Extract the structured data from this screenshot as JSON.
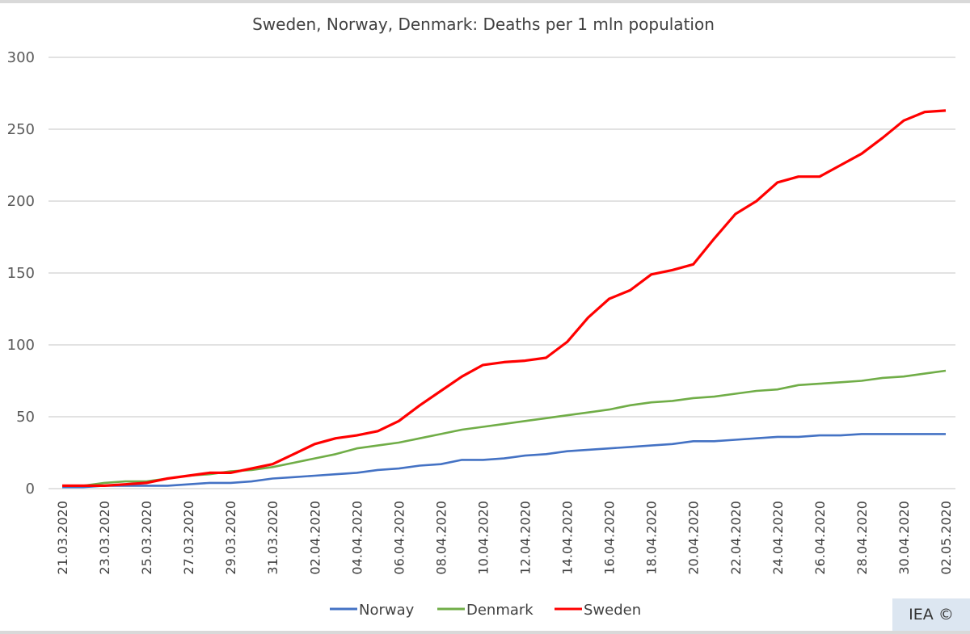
{
  "credit": "IEA ©",
  "chart_data": {
    "type": "line",
    "title": "Sweden, Norway, Denmark: Deaths per 1 mln population",
    "xlabel": "",
    "ylabel": "",
    "ylim": [
      0,
      300
    ],
    "yticks": [
      0,
      50,
      100,
      150,
      200,
      250,
      300
    ],
    "grid": true,
    "legend_position": "bottom",
    "x": [
      "21.03.2020",
      "22.03.2020",
      "23.03.2020",
      "24.03.2020",
      "25.03.2020",
      "26.03.2020",
      "27.03.2020",
      "28.03.2020",
      "29.03.2020",
      "30.03.2020",
      "31.03.2020",
      "01.04.2020",
      "02.04.2020",
      "03.04.2020",
      "04.04.2020",
      "05.04.2020",
      "06.04.2020",
      "07.04.2020",
      "08.04.2020",
      "09.04.2020",
      "10.04.2020",
      "11.04.2020",
      "12.04.2020",
      "13.04.2020",
      "14.04.2020",
      "15.04.2020",
      "16.04.2020",
      "17.04.2020",
      "18.04.2020",
      "19.04.2020",
      "20.04.2020",
      "21.04.2020",
      "22.04.2020",
      "23.04.2020",
      "24.04.2020",
      "25.04.2020",
      "26.04.2020",
      "27.04.2020",
      "28.04.2020",
      "29.04.2020",
      "30.04.2020",
      "01.05.2020",
      "02.05.2020"
    ],
    "xtick_labels": [
      "21.03.2020",
      "23.03.2020",
      "25.03.2020",
      "27.03.2020",
      "29.03.2020",
      "31.03.2020",
      "02.04.2020",
      "04.04.2020",
      "06.04.2020",
      "08.04.2020",
      "10.04.2020",
      "12.04.2020",
      "14.04.2020",
      "16.04.2020",
      "18.04.2020",
      "20.04.2020",
      "22.04.2020",
      "24.04.2020",
      "26.04.2020",
      "28.04.2020",
      "30.04.2020",
      "02.05.2020"
    ],
    "series": [
      {
        "name": "Norway",
        "color": "#4472c4",
        "values": [
          1,
          1,
          2,
          2,
          2,
          2,
          3,
          4,
          4,
          5,
          7,
          8,
          9,
          10,
          11,
          13,
          14,
          16,
          17,
          20,
          20,
          21,
          23,
          24,
          26,
          27,
          28,
          29,
          30,
          31,
          33,
          33,
          34,
          35,
          36,
          36,
          37,
          37,
          38,
          38,
          38,
          38,
          38
        ]
      },
      {
        "name": "Denmark",
        "color": "#70ad47",
        "values": [
          2,
          2,
          4,
          5,
          5,
          7,
          9,
          10,
          12,
          13,
          15,
          18,
          21,
          24,
          28,
          30,
          32,
          35,
          38,
          41,
          43,
          45,
          47,
          49,
          51,
          53,
          55,
          58,
          60,
          61,
          63,
          64,
          66,
          68,
          69,
          72,
          73,
          74,
          75,
          77,
          78,
          80,
          82
        ]
      },
      {
        "name": "Sweden",
        "color": "#ff0000",
        "values": [
          2,
          2,
          2,
          3,
          4,
          7,
          9,
          11,
          11,
          14,
          17,
          24,
          31,
          35,
          37,
          40,
          47,
          58,
          68,
          78,
          86,
          88,
          89,
          91,
          102,
          119,
          132,
          138,
          149,
          152,
          156,
          174,
          191,
          200,
          213,
          217,
          217,
          225,
          233,
          244,
          256,
          262,
          263
        ]
      }
    ]
  }
}
